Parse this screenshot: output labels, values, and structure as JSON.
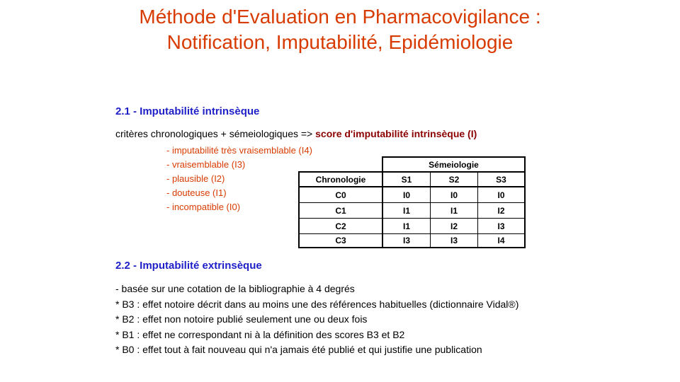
{
  "title": {
    "line1": "Méthode d'Evaluation  en Pharmacovigilance :",
    "line2": "Notification, Imputabilité, Epidémiologie"
  },
  "section_intrinseque": {
    "heading": "2.1 - Imputabilité  intrinsèque",
    "criteria_text": "critères  chronologiques  + sémeiologiques  => ",
    "score_text": "score d'imputabilité intrinsèque (I)",
    "levels": [
      "- imputabilité très vraisemblable (I4)",
      "- vraisemblable (I3)",
      "- plausible (I2)",
      "- douteuse (I1)",
      "- incompatible (I0)"
    ]
  },
  "table": {
    "group_header": "Sémeiologie",
    "row_header": "Chronologie",
    "columns": [
      "S1",
      "S2",
      "S3"
    ],
    "rows": [
      {
        "label": "C0",
        "values": [
          "I0",
          "I0",
          "I0"
        ]
      },
      {
        "label": "C1",
        "values": [
          "I1",
          "I1",
          "I2"
        ]
      },
      {
        "label": "C2",
        "values": [
          "I1",
          "I2",
          "I3"
        ]
      },
      {
        "label": "C3",
        "values": [
          "I3",
          "I3",
          "I4"
        ]
      }
    ]
  },
  "section_extrinseque": {
    "heading": "2.2 - Imputabilité  extrinsèque",
    "items": [
      "- basée sur une cotation  de la bibliographie  à 4 degrés",
      "* B3 : effet  notoire décrit dans au moins une des références  habituelles  (dictionnaire  Vidal®)",
      "* B2 : effet  non notoire  publié seulement  une ou deux fois",
      "* B1 : effet  ne correspondant  ni à la définition  des scores B3 et B2",
      "* B0 : effet  tout  à fait nouveau qui n'a jamais été publié et qui justifie  une publication"
    ]
  },
  "colors": {
    "title": "#d83b01",
    "heading": "#1f1fc8",
    "score": "#8b0000",
    "levels": "#d83b01"
  }
}
